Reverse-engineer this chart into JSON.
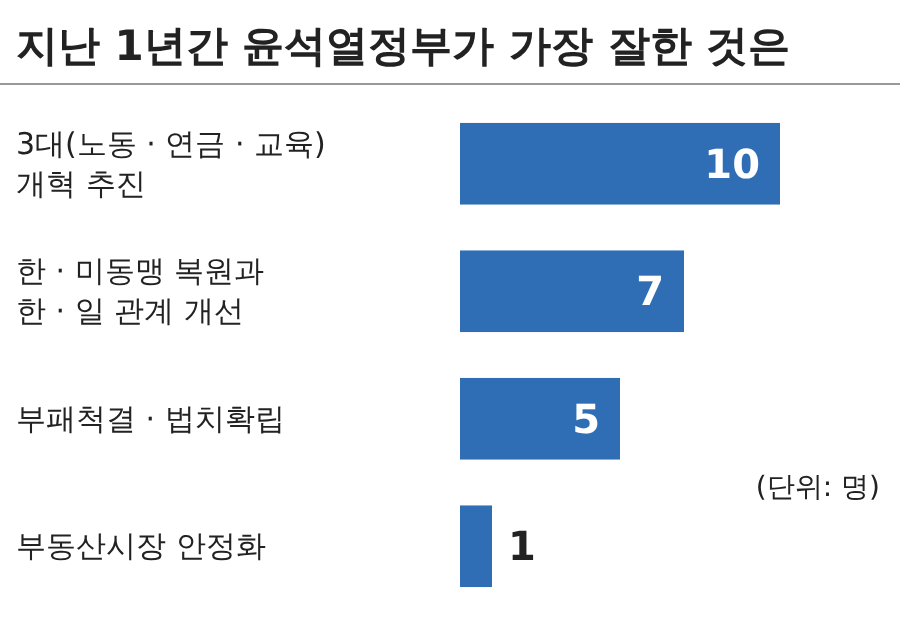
{
  "chart_data": {
    "type": "bar",
    "orientation": "horizontal",
    "title": "지난 1년간 윤석열정부가 가장 잘한 것은",
    "categories": [
      "3대(노동 · 연금 · 교육)\n개혁 추진",
      "한 · 미동맹 복원과\n한 · 일 관계 개선",
      "부패척결 · 법치확립",
      "부동산시장 안정화"
    ],
    "values": [
      10,
      7,
      5,
      1
    ],
    "color": "#2f6eb5",
    "data_labels": true,
    "annotations": [
      "(단위: 명)"
    ]
  }
}
